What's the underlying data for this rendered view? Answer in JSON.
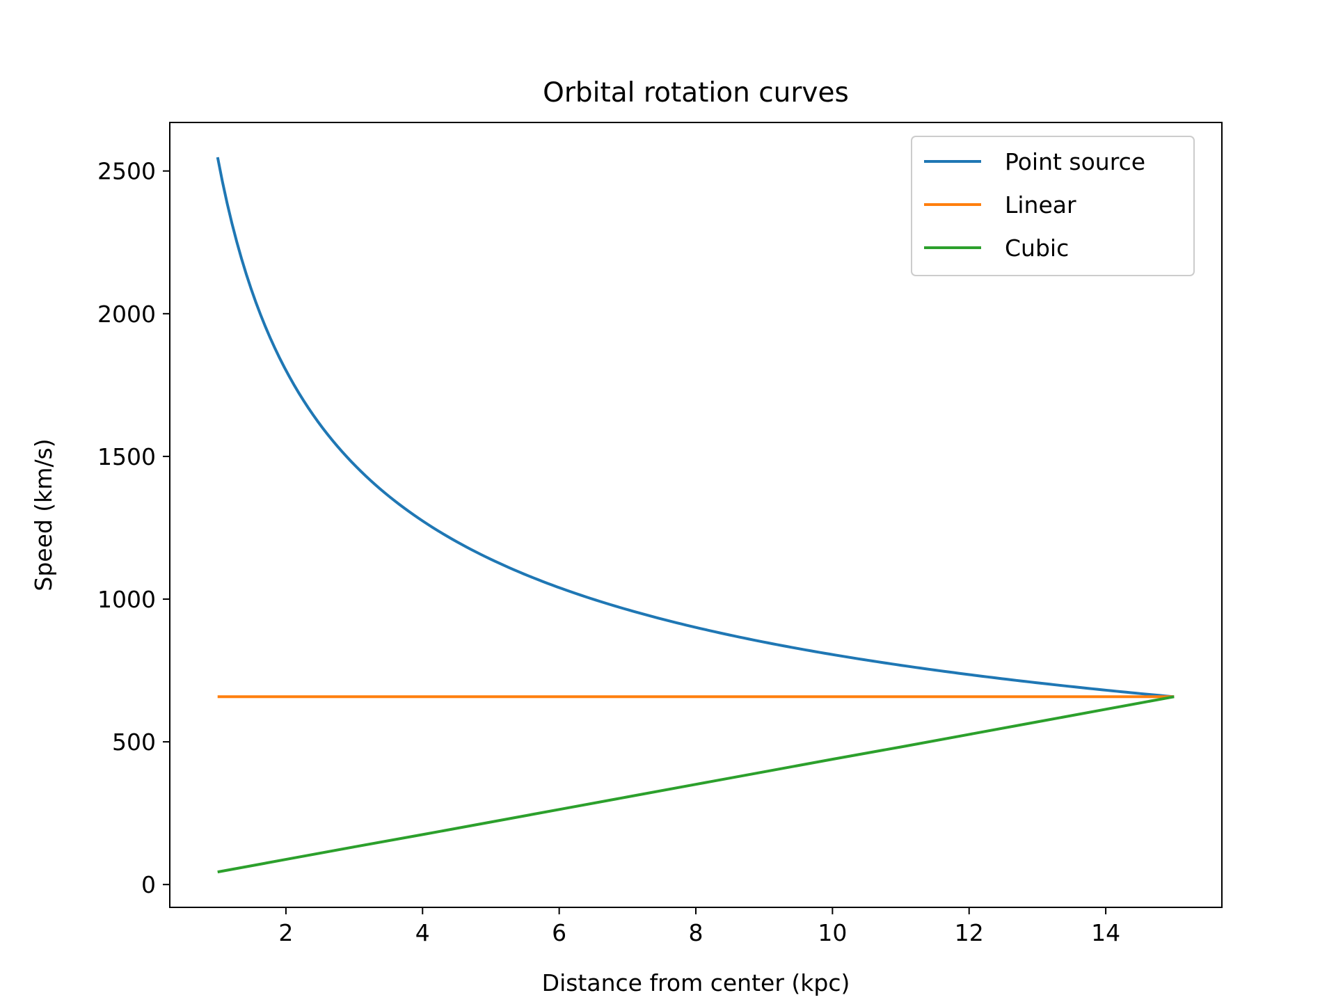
{
  "chart_data": {
    "type": "line",
    "title": "Orbital rotation curves",
    "xlabel": "Distance from center (kpc)",
    "ylabel": "Speed (km/s)",
    "xlim": [
      0.3,
      15.7
    ],
    "ylim": [
      -80,
      2670
    ],
    "xticks": [
      2,
      4,
      6,
      8,
      10,
      12,
      14
    ],
    "yticks": [
      0,
      500,
      1000,
      1500,
      2000,
      2500
    ],
    "grid": false,
    "legend_position": "upper right",
    "series": [
      {
        "name": "Point source",
        "color": "#1f77b4",
        "x": [
          1,
          1.25,
          1.5,
          2,
          2.5,
          3,
          3.5,
          4,
          5,
          6,
          7,
          8,
          9,
          10,
          11,
          12,
          13,
          14,
          15
        ],
        "y": [
          2548,
          2279,
          2080,
          1802,
          1611,
          1471,
          1362,
          1274,
          1140,
          1040,
          963,
          901,
          849,
          806,
          768,
          735,
          707,
          681,
          658
        ]
      },
      {
        "name": "Linear",
        "color": "#ff7f0e",
        "x": [
          1,
          15
        ],
        "y": [
          658,
          658
        ]
      },
      {
        "name": "Cubic",
        "color": "#2ca02c",
        "x": [
          1,
          2,
          3,
          4,
          5,
          6,
          7,
          8,
          9,
          10,
          11,
          12,
          13,
          14,
          15
        ],
        "y": [
          44,
          88,
          132,
          175,
          219,
          263,
          307,
          351,
          395,
          439,
          482,
          526,
          570,
          614,
          658
        ]
      }
    ]
  }
}
